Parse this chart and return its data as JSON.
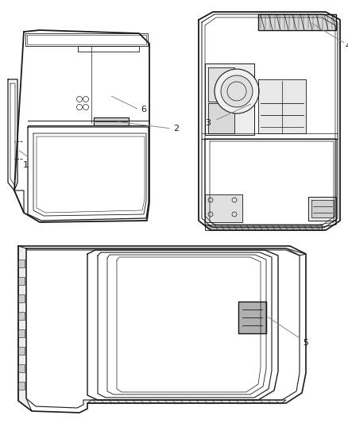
{
  "bg_color": "#ffffff",
  "line_color": "#1a1a1a",
  "annotation_line_color": "#888888",
  "label_color": "#000000",
  "figsize": [
    4.38,
    5.33
  ],
  "dpi": 100,
  "label_fontsize": 8
}
